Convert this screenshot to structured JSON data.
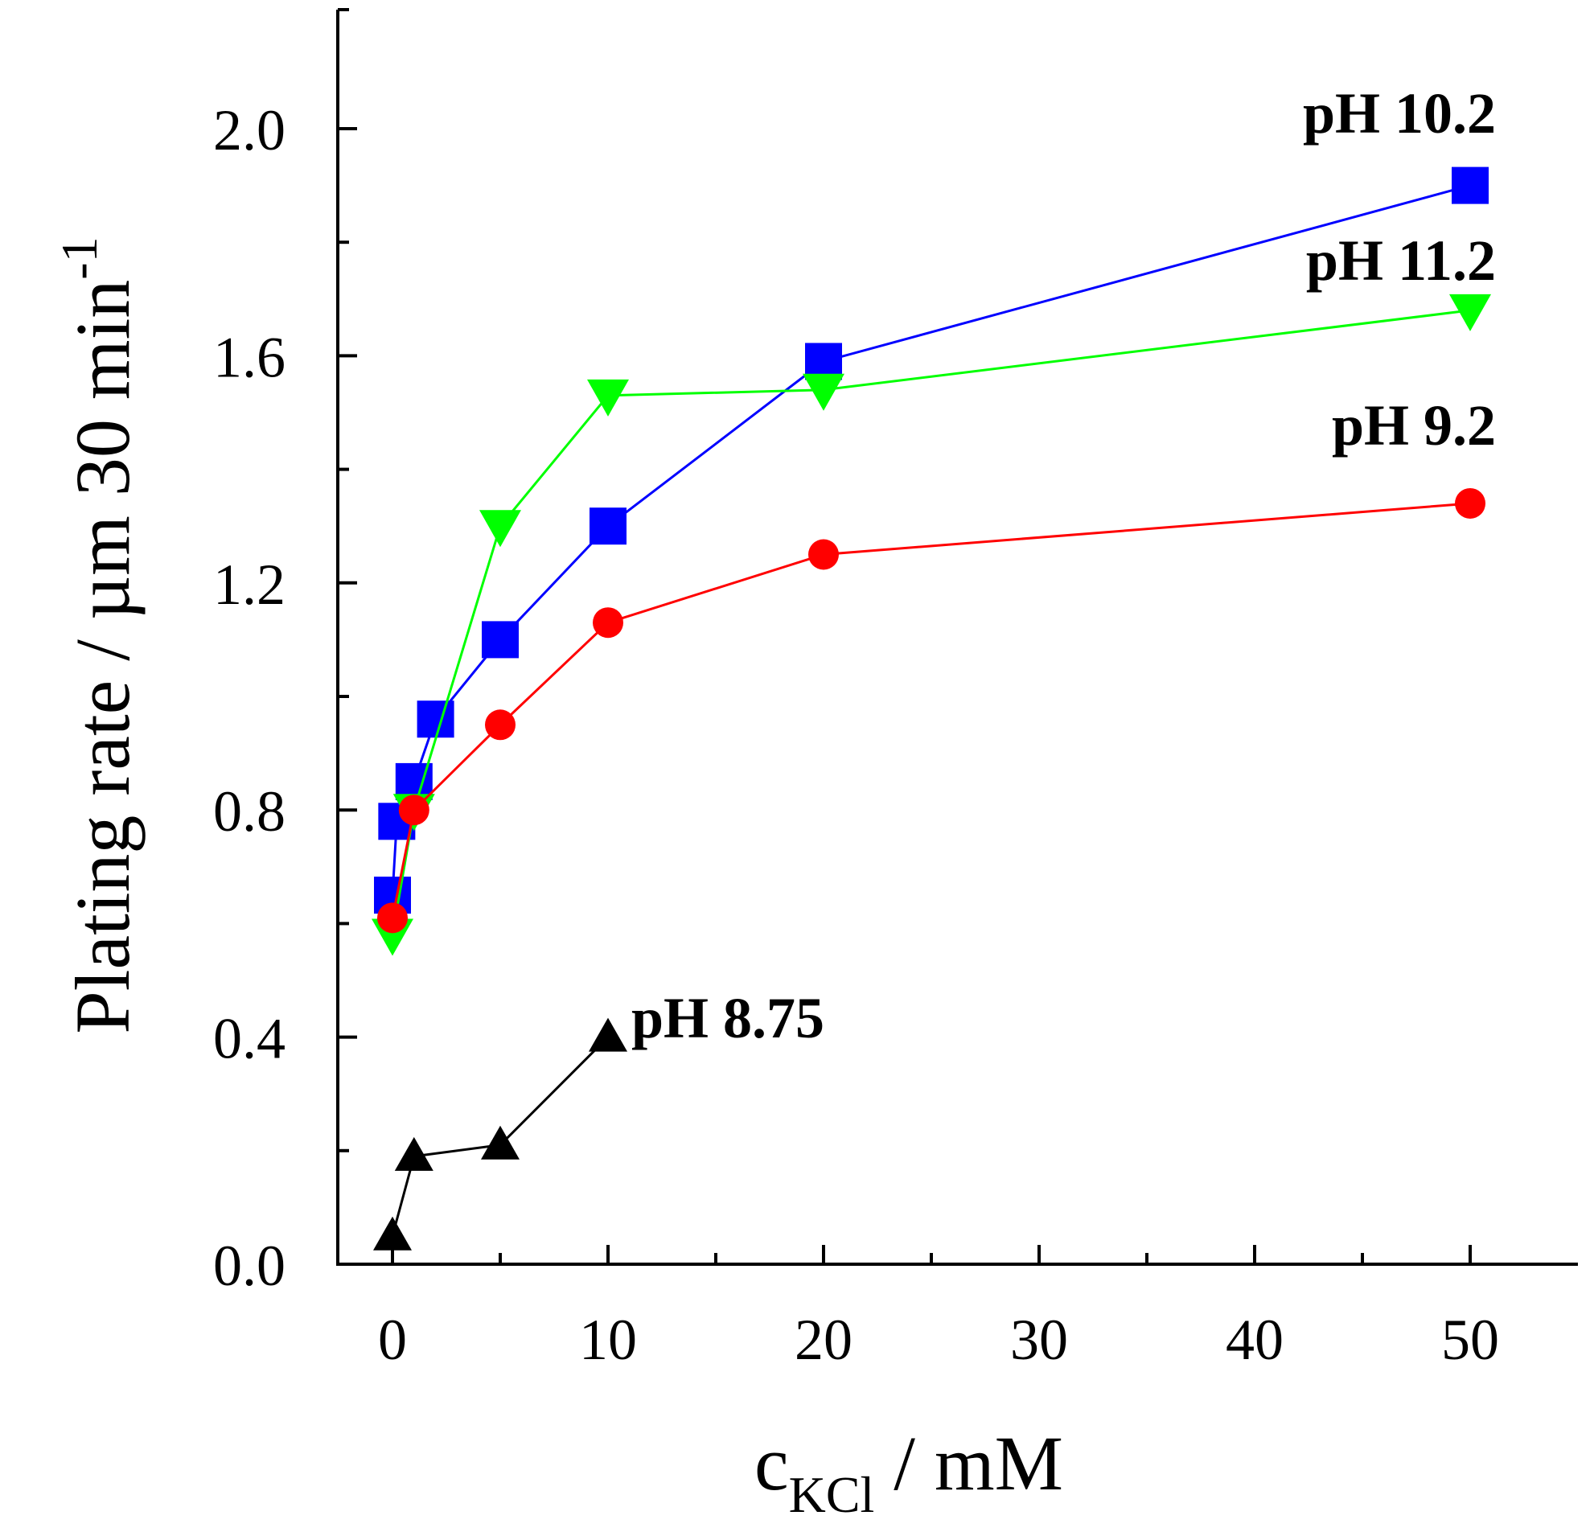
{
  "chart_data": {
    "type": "line",
    "title": "",
    "xlabel": "c",
    "xlabel_subscript": "KCl",
    "xlabel_suffix": " / mM",
    "ylabel": "Plating rate / µm 30 min",
    "ylabel_superscript": "-1",
    "xlim": [
      -2.5,
      55
    ],
    "ylim": [
      0,
      2.2
    ],
    "x_major_ticks": [
      0,
      10,
      20,
      30,
      40,
      50
    ],
    "x_major_tick_labels": [
      "0",
      "10",
      "20",
      "30",
      "40",
      "50"
    ],
    "x_minor_ticks": [
      5,
      15,
      25,
      35,
      45
    ],
    "y_major_ticks": [
      0.0,
      0.4,
      0.8,
      1.2,
      1.6,
      2.0
    ],
    "y_major_tick_labels": [
      "0.0",
      "0.4",
      "0.8",
      "1.2",
      "1.6",
      "2.0"
    ],
    "y_minor_ticks": [
      0.2,
      0.6,
      1.0,
      1.4,
      1.8
    ],
    "grid": false,
    "series": [
      {
        "name": "pH 10.2",
        "color": "#0000ff",
        "marker": "square",
        "x": [
          0,
          0.2,
          1,
          2,
          5,
          10,
          20,
          50
        ],
        "y": [
          0.65,
          0.78,
          0.85,
          0.96,
          1.1,
          1.3,
          1.59,
          1.9
        ]
      },
      {
        "name": "pH 11.2",
        "color": "#00ff00",
        "marker": "triangle-down",
        "x": [
          0,
          1,
          5,
          10,
          20,
          50
        ],
        "y": [
          0.58,
          0.8,
          1.3,
          1.53,
          1.54,
          1.68
        ]
      },
      {
        "name": "pH 9.2",
        "color": "#ff0000",
        "marker": "circle",
        "x": [
          0,
          1,
          5,
          10,
          20,
          50
        ],
        "y": [
          0.61,
          0.8,
          0.95,
          1.13,
          1.25,
          1.34
        ]
      },
      {
        "name": "pH 8.75",
        "color": "#000000",
        "marker": "triangle-up",
        "x": [
          0,
          1,
          5,
          10
        ],
        "y": [
          0.05,
          0.19,
          0.21,
          0.4
        ]
      }
    ]
  }
}
